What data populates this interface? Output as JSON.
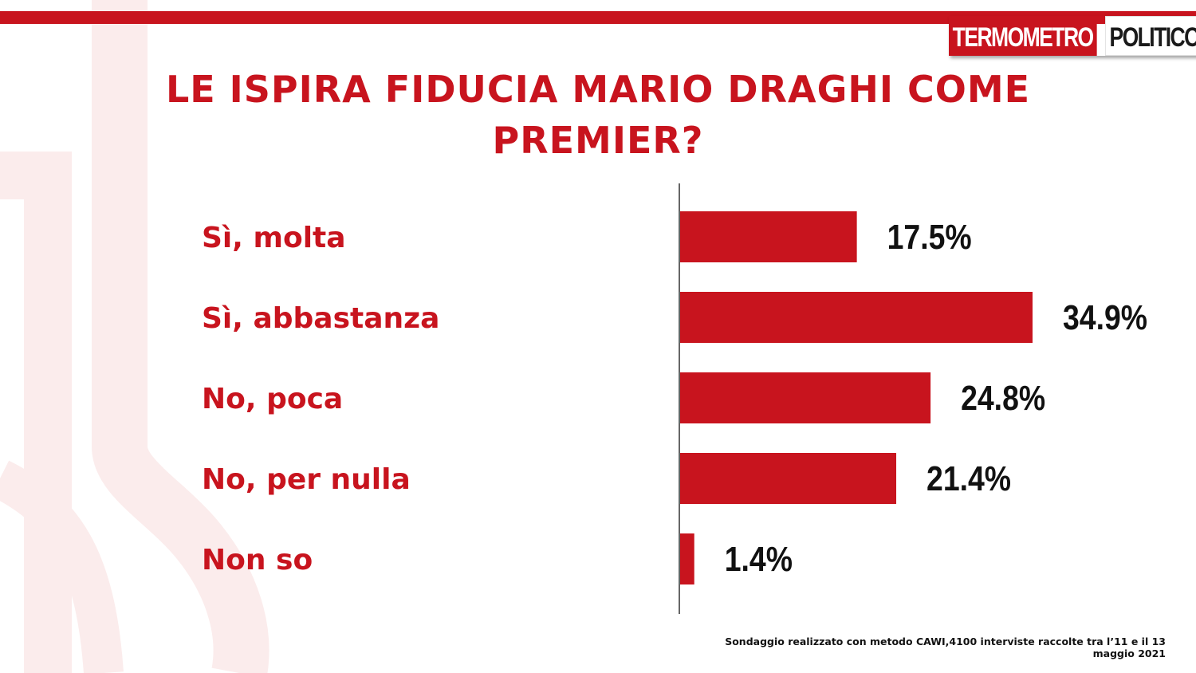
{
  "brand": {
    "logo_part1": "TERMOMETRO",
    "logo_part2": "POLITICO",
    "accent": "#c8141e"
  },
  "title": "LE ISPIRA FIDUCIA MARIO DRAGHI COME PREMIER?",
  "footnote": "Sondaggio realizzato con metodo CAWI,4100 interviste raccolte tra l’11 e il 13 maggio 2021",
  "chart_data": {
    "type": "bar",
    "orientation": "horizontal",
    "title": "LE ISPIRA FIDUCIA MARIO DRAGHI COME PREMIER?",
    "categories": [
      "Sì, molta",
      "Sì, abbastanza",
      "No, poca",
      "No, per nulla",
      "Non so"
    ],
    "values": [
      17.5,
      34.9,
      24.8,
      21.4,
      1.4
    ],
    "value_labels": [
      "17.5%",
      "34.9%",
      "24.8%",
      "21.4%",
      "1.4%"
    ],
    "unit": "%",
    "xlim": [
      0,
      34.9
    ],
    "bar_color": "#c8141e",
    "grid": false,
    "legend": "none"
  }
}
